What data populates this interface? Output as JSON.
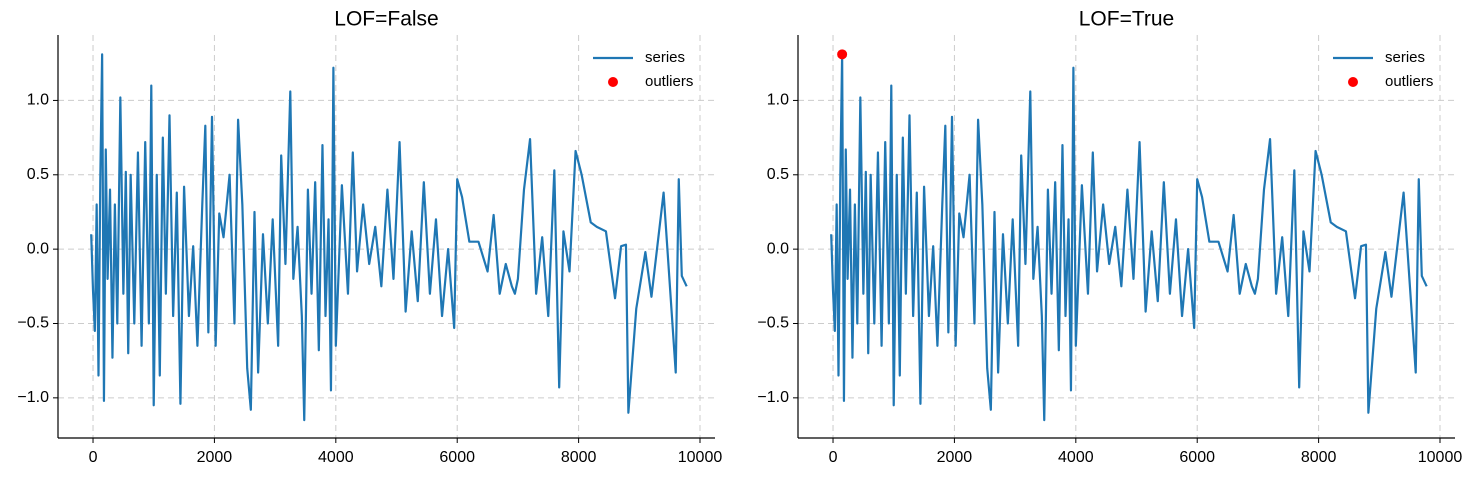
{
  "chart_data": [
    {
      "type": "line",
      "title": "LOF=False",
      "x": [
        -30,
        0,
        30,
        60,
        90,
        120,
        150,
        180,
        210,
        240,
        280,
        320,
        360,
        400,
        450,
        500,
        540,
        580,
        620,
        680,
        740,
        800,
        860,
        920,
        960,
        1000,
        1050,
        1100,
        1150,
        1200,
        1260,
        1320,
        1380,
        1440,
        1500,
        1580,
        1650,
        1720,
        1800,
        1850,
        1900,
        1960,
        2020,
        2080,
        2150,
        2250,
        2330,
        2390,
        2460,
        2540,
        2600,
        2660,
        2720,
        2800,
        2880,
        2960,
        3050,
        3100,
        3170,
        3250,
        3300,
        3370,
        3440,
        3480,
        3540,
        3600,
        3660,
        3720,
        3780,
        3830,
        3880,
        3920,
        3960,
        4000,
        4100,
        4200,
        4280,
        4350,
        4450,
        4550,
        4650,
        4750,
        4850,
        4950,
        5050,
        5150,
        5250,
        5350,
        5450,
        5550,
        5650,
        5750,
        5850,
        5950,
        6000,
        6080,
        6200,
        6350,
        6500,
        6600,
        6700,
        6800,
        6900,
        6950,
        7000,
        7100,
        7200,
        7300,
        7400,
        7500,
        7600,
        7680,
        7750,
        7850,
        7950,
        8050,
        8200,
        8300,
        8450,
        8600,
        8700,
        8780,
        8820,
        8950,
        9100,
        9200,
        9400,
        9600,
        9650,
        9700,
        9780
      ],
      "series": [
        {
          "name": "series",
          "color": "#1f77b4",
          "values": [
            0.1,
            -0.28,
            -0.55,
            0.3,
            -0.85,
            0.48,
            1.31,
            -1.02,
            0.67,
            -0.2,
            0.4,
            -0.73,
            0.3,
            -0.5,
            1.02,
            -0.3,
            0.52,
            -0.7,
            0.5,
            -0.5,
            0.65,
            -0.65,
            0.72,
            -0.5,
            1.1,
            -1.05,
            0.5,
            -0.85,
            0.75,
            -0.3,
            0.9,
            -0.45,
            0.38,
            -1.04,
            0.42,
            -0.45,
            0.02,
            -0.65,
            0.3,
            0.83,
            -0.56,
            0.89,
            -0.65,
            0.24,
            0.08,
            0.5,
            -0.5,
            0.87,
            0.3,
            -0.8,
            -1.08,
            0.25,
            -0.83,
            0.1,
            -0.5,
            0.2,
            -0.65,
            0.63,
            -0.1,
            1.06,
            -0.2,
            0.15,
            -0.45,
            -1.15,
            0.4,
            -0.3,
            0.45,
            -0.68,
            0.7,
            -0.45,
            0.2,
            -0.95,
            1.22,
            -0.65,
            0.43,
            -0.3,
            0.65,
            -0.15,
            0.3,
            -0.1,
            0.15,
            -0.25,
            0.4,
            -0.2,
            0.72,
            -0.42,
            0.12,
            -0.35,
            0.45,
            -0.3,
            0.2,
            -0.45,
            0,
            -0.53,
            0.47,
            0.35,
            0.05,
            0.05,
            -0.15,
            0.23,
            -0.3,
            -0.1,
            -0.25,
            -0.3,
            -0.2,
            0.4,
            0.74,
            -0.3,
            0.08,
            -0.45,
            0.53,
            -0.93,
            0.12,
            -0.15,
            0.66,
            0.5,
            0.18,
            0.15,
            0.12,
            -0.33,
            0.02,
            0.03,
            -1.1,
            -0.4,
            -0.02,
            -0.32,
            0.38,
            -0.83,
            0.47,
            -0.18,
            -0.25
          ]
        },
        {
          "name": "outliers",
          "type": "scatter",
          "color": "#ff0000",
          "x": [],
          "values": []
        }
      ],
      "xlim": [
        -577,
        10247
      ],
      "ylim": [
        -1.27,
        1.44
      ],
      "xticks": [
        0,
        2000,
        4000,
        6000,
        8000,
        10000
      ],
      "yticks": [
        {
          "value": -1,
          "label": "−1.0"
        },
        {
          "value": -0.5,
          "label": "−0.5"
        },
        {
          "value": 0,
          "label": "0.0"
        },
        {
          "value": 0.5,
          "label": "0.5"
        },
        {
          "value": 1,
          "label": "1.0"
        }
      ],
      "grid": true,
      "legend": "upper right"
    },
    {
      "type": "line",
      "title": "LOF=True",
      "x": [
        -30,
        0,
        30,
        60,
        90,
        120,
        150,
        180,
        210,
        240,
        280,
        320,
        360,
        400,
        450,
        500,
        540,
        580,
        620,
        680,
        740,
        800,
        860,
        920,
        960,
        1000,
        1050,
        1100,
        1150,
        1200,
        1260,
        1320,
        1380,
        1440,
        1500,
        1580,
        1650,
        1720,
        1800,
        1850,
        1900,
        1960,
        2020,
        2080,
        2150,
        2250,
        2330,
        2390,
        2460,
        2540,
        2600,
        2660,
        2720,
        2800,
        2880,
        2960,
        3050,
        3100,
        3170,
        3250,
        3300,
        3370,
        3440,
        3480,
        3540,
        3600,
        3660,
        3720,
        3780,
        3830,
        3880,
        3920,
        3960,
        4000,
        4100,
        4200,
        4280,
        4350,
        4450,
        4550,
        4650,
        4750,
        4850,
        4950,
        5050,
        5150,
        5250,
        5350,
        5450,
        5550,
        5650,
        5750,
        5850,
        5950,
        6000,
        6080,
        6200,
        6350,
        6500,
        6600,
        6700,
        6800,
        6900,
        6950,
        7000,
        7100,
        7200,
        7300,
        7400,
        7500,
        7600,
        7680,
        7750,
        7850,
        7950,
        8050,
        8200,
        8300,
        8450,
        8600,
        8700,
        8780,
        8820,
        8950,
        9100,
        9200,
        9400,
        9600,
        9650,
        9700,
        9780
      ],
      "series": [
        {
          "name": "series",
          "color": "#1f77b4",
          "values": [
            0.1,
            -0.28,
            -0.55,
            0.3,
            -0.85,
            0.48,
            1.31,
            -1.02,
            0.67,
            -0.2,
            0.4,
            -0.73,
            0.3,
            -0.5,
            1.02,
            -0.3,
            0.52,
            -0.7,
            0.5,
            -0.5,
            0.65,
            -0.65,
            0.72,
            -0.5,
            1.1,
            -1.05,
            0.5,
            -0.85,
            0.75,
            -0.3,
            0.9,
            -0.45,
            0.38,
            -1.04,
            0.42,
            -0.45,
            0.02,
            -0.65,
            0.3,
            0.83,
            -0.56,
            0.89,
            -0.65,
            0.24,
            0.08,
            0.5,
            -0.5,
            0.87,
            0.3,
            -0.8,
            -1.08,
            0.25,
            -0.83,
            0.1,
            -0.5,
            0.2,
            -0.65,
            0.63,
            -0.1,
            1.06,
            -0.2,
            0.15,
            -0.45,
            -1.15,
            0.4,
            -0.3,
            0.45,
            -0.68,
            0.7,
            -0.45,
            0.2,
            -0.95,
            1.22,
            -0.65,
            0.43,
            -0.3,
            0.65,
            -0.15,
            0.3,
            -0.1,
            0.15,
            -0.25,
            0.4,
            -0.2,
            0.72,
            -0.42,
            0.12,
            -0.35,
            0.45,
            -0.3,
            0.2,
            -0.45,
            0,
            -0.53,
            0.47,
            0.35,
            0.05,
            0.05,
            -0.15,
            0.23,
            -0.3,
            -0.1,
            -0.25,
            -0.3,
            -0.2,
            0.4,
            0.74,
            -0.3,
            0.08,
            -0.45,
            0.53,
            -0.93,
            0.12,
            -0.15,
            0.66,
            0.5,
            0.18,
            0.15,
            0.12,
            -0.33,
            0.02,
            0.03,
            -1.1,
            -0.4,
            -0.02,
            -0.32,
            0.38,
            -0.83,
            0.47,
            -0.18,
            -0.25
          ]
        },
        {
          "name": "outliers",
          "type": "scatter",
          "color": "#ff0000",
          "x": [
            150
          ],
          "values": [
            1.31
          ]
        }
      ],
      "xlim": [
        -577,
        10247
      ],
      "ylim": [
        -1.27,
        1.44
      ],
      "xticks": [
        0,
        2000,
        4000,
        6000,
        8000,
        10000
      ],
      "yticks": [
        {
          "value": -1,
          "label": "−1.0"
        },
        {
          "value": -0.5,
          "label": "−0.5"
        },
        {
          "value": 0,
          "label": "0.0"
        },
        {
          "value": 0.5,
          "label": "0.5"
        },
        {
          "value": 1,
          "label": "1.0"
        }
      ],
      "grid": true,
      "legend": "upper right"
    }
  ]
}
